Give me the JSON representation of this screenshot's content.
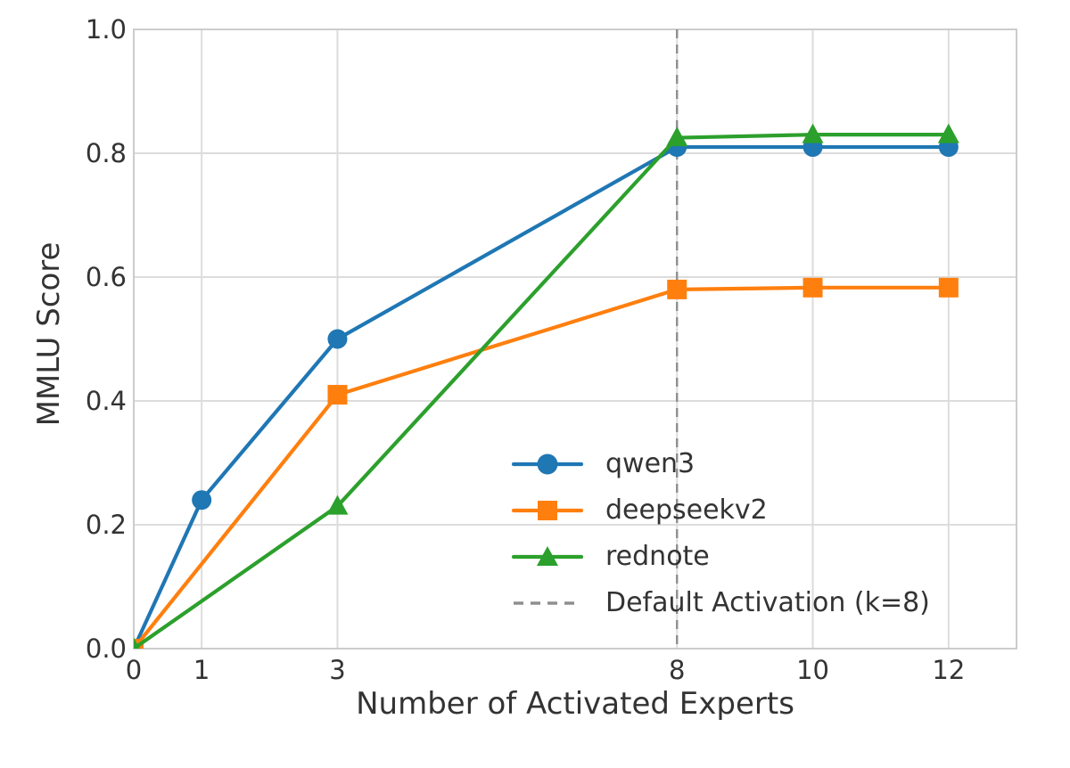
{
  "figure": {
    "background": "#ffffff"
  },
  "chart_data": {
    "type": "line",
    "title": "",
    "xlabel": "Number of Activated Experts",
    "ylabel": "MMLU Score",
    "xlim": [
      0,
      13
    ],
    "ylim": [
      0.0,
      1.0
    ],
    "x_ticks": [
      0,
      1,
      3,
      8,
      10,
      12
    ],
    "x_tick_labels": [
      "0",
      "1",
      "3",
      "8",
      "10",
      "12"
    ],
    "y_ticks": [
      0.0,
      0.2,
      0.4,
      0.6,
      0.8,
      1.0
    ],
    "y_tick_labels": [
      "0.0",
      "0.2",
      "0.4",
      "0.6",
      "0.8",
      "1.0"
    ],
    "grid": true,
    "legend_position": "lower-right-inside",
    "series": [
      {
        "name": "qwen3",
        "color": "#1f77b4",
        "marker": "circle",
        "x": [
          0,
          1,
          3,
          8,
          10,
          12
        ],
        "y": [
          0.0,
          0.24,
          0.5,
          0.81,
          0.81,
          0.81
        ]
      },
      {
        "name": "deepseekv2",
        "color": "#ff7f0e",
        "marker": "square",
        "x": [
          0,
          3,
          8,
          10,
          12
        ],
        "y": [
          0.0,
          0.41,
          0.58,
          0.583,
          0.583
        ]
      },
      {
        "name": "rednote",
        "color": "#2ca02c",
        "marker": "triangle",
        "x": [
          0,
          3,
          8,
          10,
          12
        ],
        "y": [
          0.0,
          0.23,
          0.825,
          0.83,
          0.83
        ]
      }
    ],
    "reference_line": {
      "label": "Default Activation (k=8)",
      "x": 8,
      "style": "dashed",
      "color": "#8f8f8f"
    },
    "grid_color": "#dcdcdc",
    "border_color": "#cccccc",
    "text_color": "#333333"
  }
}
